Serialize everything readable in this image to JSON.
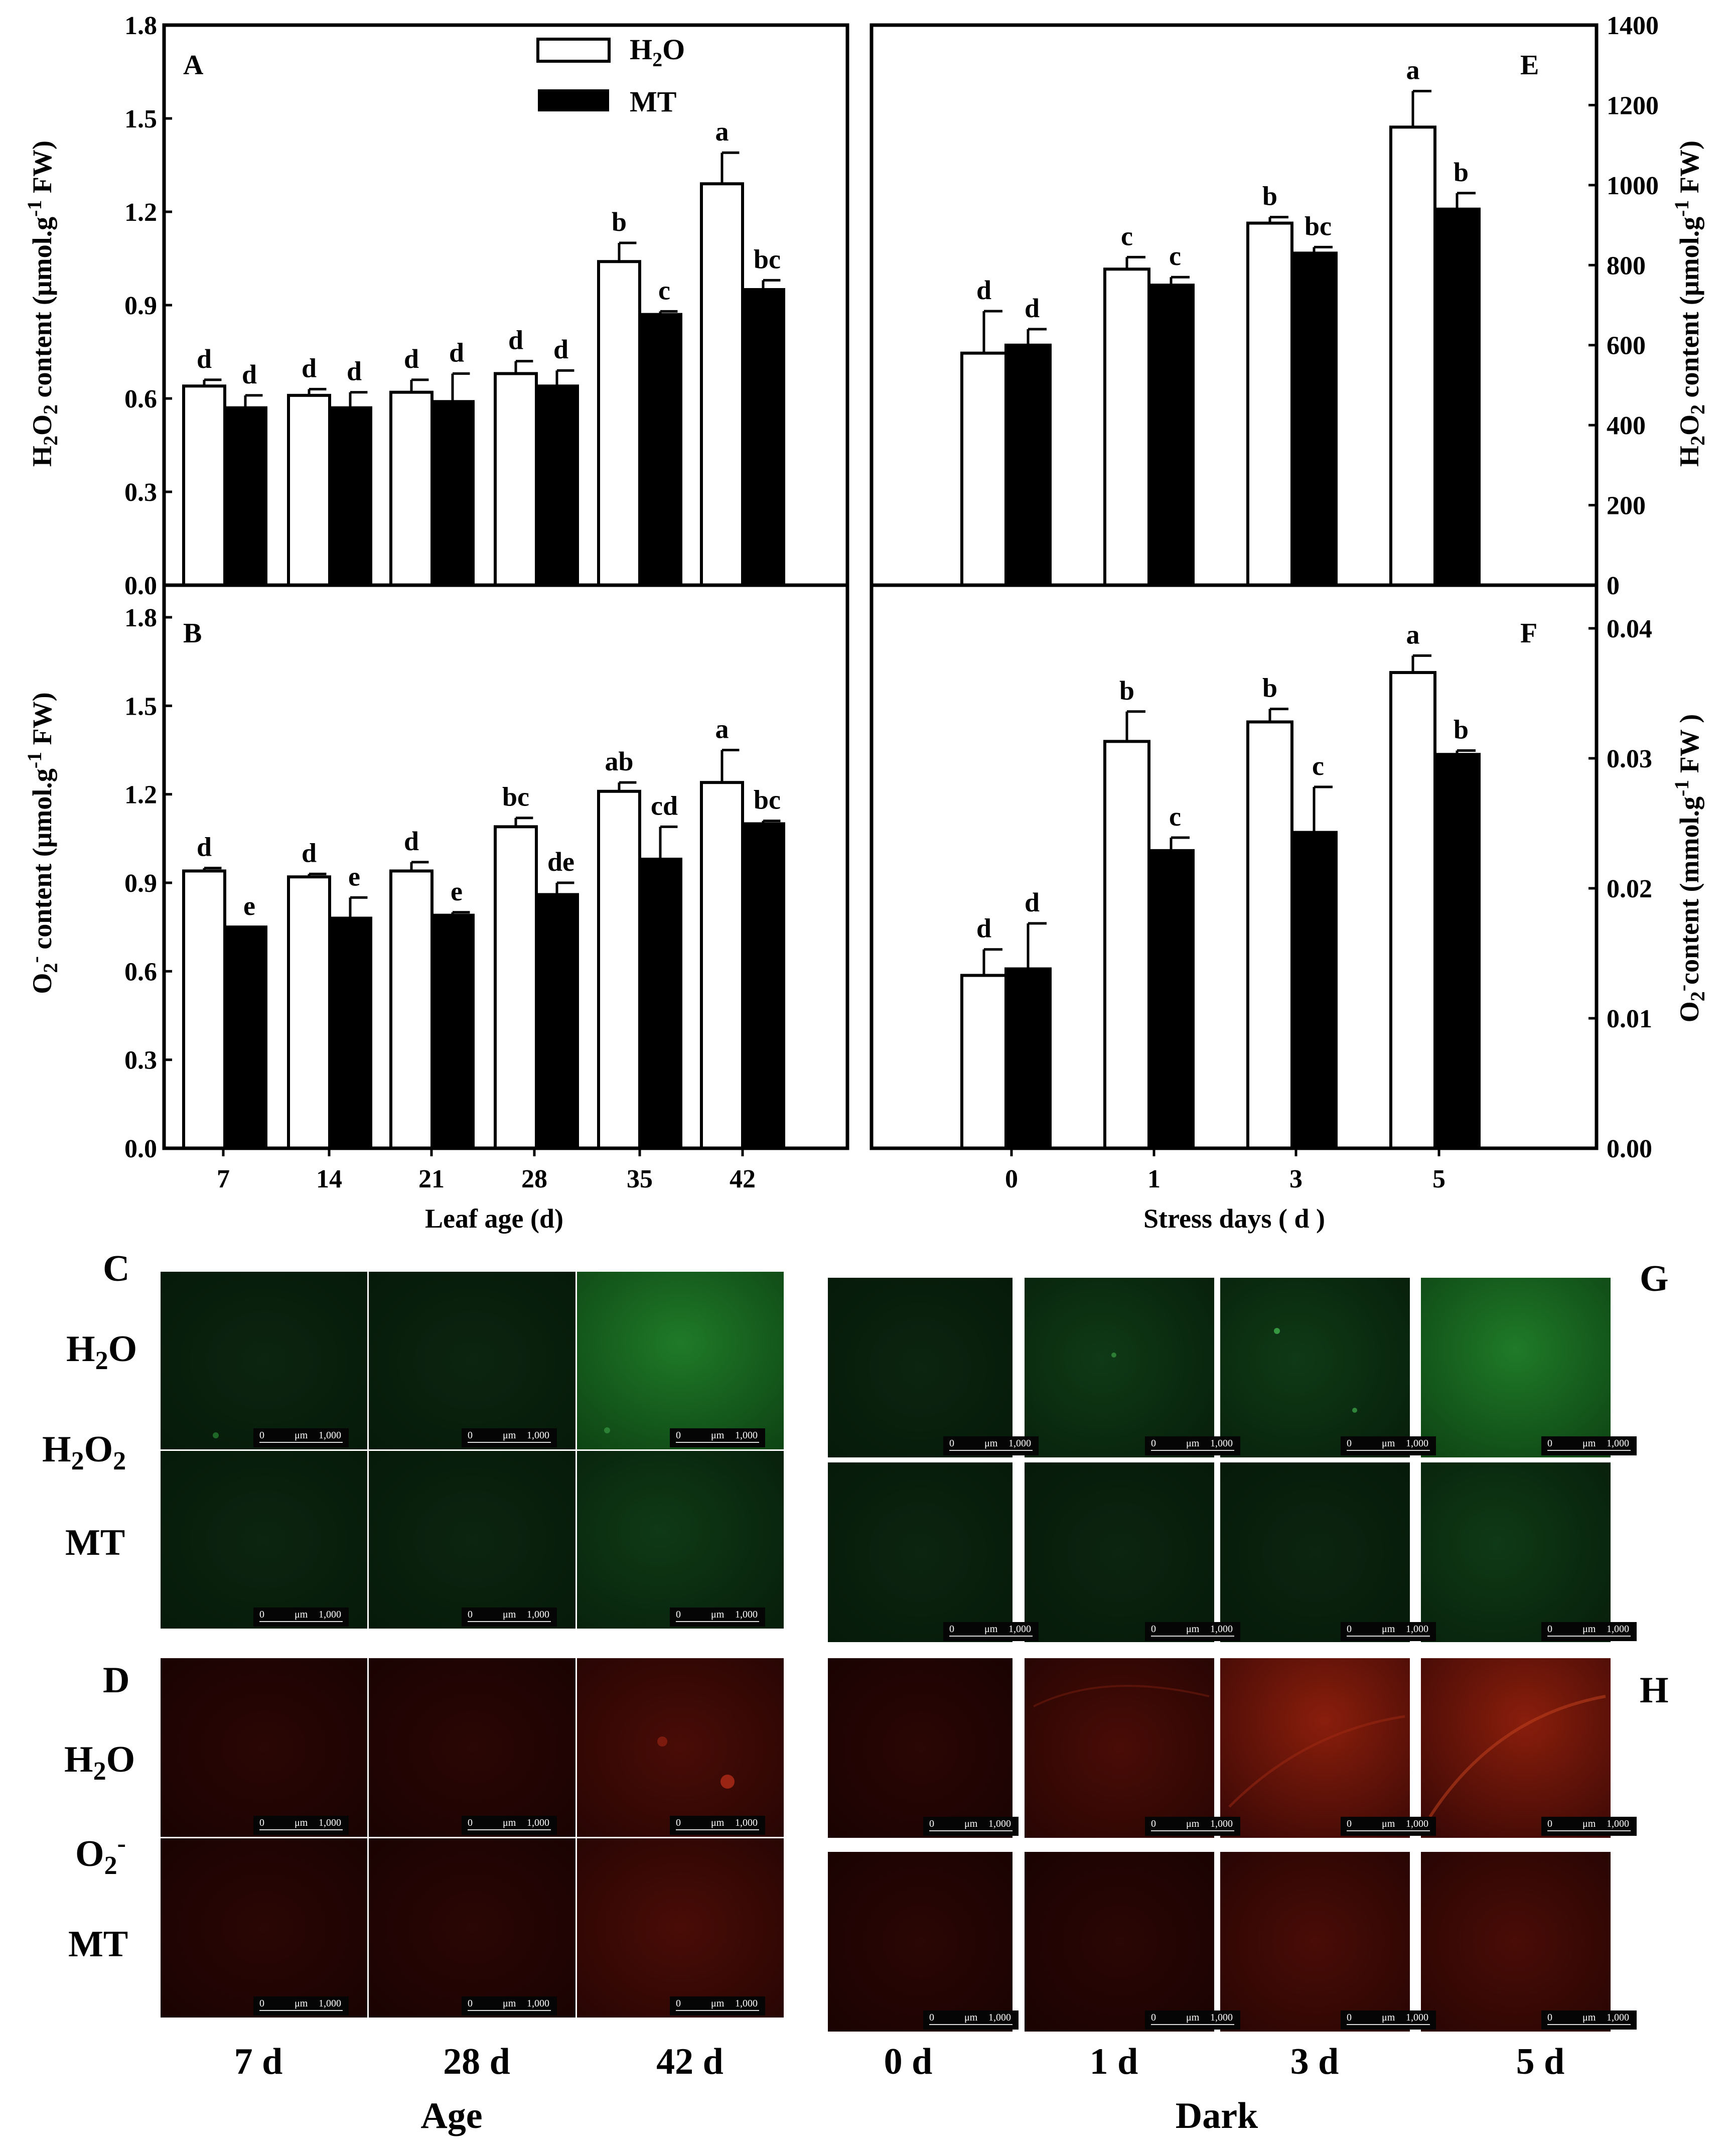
{
  "legend": {
    "h2o": "H2O",
    "mt": "MT"
  },
  "chart_data": [
    {
      "id": "A",
      "panel": "A",
      "type": "bar",
      "categories": [
        "7",
        "14",
        "21",
        "28",
        "35",
        "42"
      ],
      "series": [
        {
          "name": "H2O",
          "values": [
            0.64,
            0.61,
            0.62,
            0.68,
            1.04,
            1.29
          ],
          "errors": [
            0.02,
            0.02,
            0.04,
            0.04,
            0.06,
            0.1
          ],
          "labels": [
            "d",
            "d",
            "d",
            "d",
            "b",
            "a"
          ]
        },
        {
          "name": "MT",
          "values": [
            0.57,
            0.57,
            0.59,
            0.64,
            0.87,
            0.95
          ],
          "errors": [
            0.04,
            0.05,
            0.09,
            0.05,
            0.01,
            0.03
          ],
          "labels": [
            "d",
            "d",
            "d",
            "d",
            "c",
            "bc"
          ]
        }
      ],
      "ylabel": "H2O2 content (μmol.g-1 FW)",
      "ylim": [
        0,
        1.8
      ],
      "yticks": [
        "0.0",
        "0.3",
        "0.6",
        "0.9",
        "1.2",
        "1.5",
        "1.8"
      ]
    },
    {
      "id": "B",
      "panel": "B",
      "type": "bar",
      "categories": [
        "7",
        "14",
        "21",
        "28",
        "35",
        "42"
      ],
      "series": [
        {
          "name": "H2O",
          "values": [
            0.94,
            0.92,
            0.94,
            1.09,
            1.21,
            1.24
          ],
          "errors": [
            0.01,
            0.01,
            0.03,
            0.03,
            0.03,
            0.11
          ],
          "labels": [
            "d",
            "d",
            "d",
            "bc",
            "ab",
            "a"
          ]
        },
        {
          "name": "MT",
          "values": [
            0.75,
            0.78,
            0.79,
            0.86,
            0.98,
            1.1
          ],
          "errors": [
            0.0,
            0.07,
            0.01,
            0.04,
            0.11,
            0.01
          ],
          "labels": [
            "e",
            "e",
            "e",
            "de",
            "cd",
            "bc"
          ]
        }
      ],
      "xlabel": "Leaf age  (d)",
      "ylabel": "O2- content (μmol.g-1 FW)",
      "ylim": [
        0,
        1.8
      ],
      "yticks": [
        "0.0",
        "0.3",
        "0.6",
        "0.9",
        "1.2",
        "1.5",
        "1.8"
      ]
    },
    {
      "id": "E",
      "panel": "E",
      "type": "bar",
      "categories": [
        "0",
        "1",
        "3",
        "5"
      ],
      "series": [
        {
          "name": "H2O",
          "values": [
            580,
            790,
            905,
            1145
          ],
          "errors": [
            105,
            30,
            15,
            90
          ],
          "labels": [
            "d",
            "c",
            "b",
            "a"
          ]
        },
        {
          "name": "MT",
          "values": [
            600,
            750,
            830,
            940
          ],
          "errors": [
            40,
            20,
            15,
            40
          ],
          "labels": [
            "d",
            "c",
            "bc",
            "b"
          ]
        }
      ],
      "ylabel": "H2O2 content (μmol.g-1 FW)",
      "ylim": [
        0,
        1400
      ],
      "yticks": [
        "0",
        "200",
        "400",
        "600",
        "800",
        "1000",
        "1200",
        "1400"
      ]
    },
    {
      "id": "F",
      "panel": "F",
      "type": "bar",
      "categories": [
        "0",
        "1",
        "3",
        "5"
      ],
      "series": [
        {
          "name": "H2O",
          "values": [
            0.0133,
            0.0313,
            0.0328,
            0.0366
          ],
          "errors": [
            0.002,
            0.0023,
            0.001,
            0.0013
          ],
          "labels": [
            "d",
            "b",
            "b",
            "a"
          ]
        },
        {
          "name": "MT",
          "values": [
            0.0138,
            0.0229,
            0.0243,
            0.0303
          ],
          "errors": [
            0.0035,
            0.001,
            0.0035,
            0.0003
          ],
          "labels": [
            "d",
            "c",
            "c",
            "b"
          ]
        }
      ],
      "xlabel": "Stress days ( d )",
      "ylabel": "O2-content (mmol.g-1 FW)",
      "ylim": [
        0,
        0.04
      ],
      "yticks": [
        "0.00",
        "0.01",
        "0.02",
        "0.03",
        "0.04"
      ]
    }
  ],
  "micrographs": {
    "left": {
      "columns": [
        "7 d",
        "28 d",
        "42 d"
      ],
      "group_label": "Age",
      "panel_c": "C",
      "panel_d": "D",
      "row_h2o": "H2O",
      "row_mt": "MT",
      "stain_h2o2": "H2O2",
      "stain_o2": "O2-"
    },
    "right": {
      "columns": [
        "0 d",
        "1 d",
        "3 d",
        "5 d"
      ],
      "group_label": "Dark",
      "panel_g": "G",
      "panel_h": "H"
    },
    "scale_bar": {
      "zero": "0",
      "unit": "μm",
      "max": "1,000"
    },
    "colors": {
      "green_stain": "#1fae2a",
      "red_stain": "#d22a10"
    }
  }
}
